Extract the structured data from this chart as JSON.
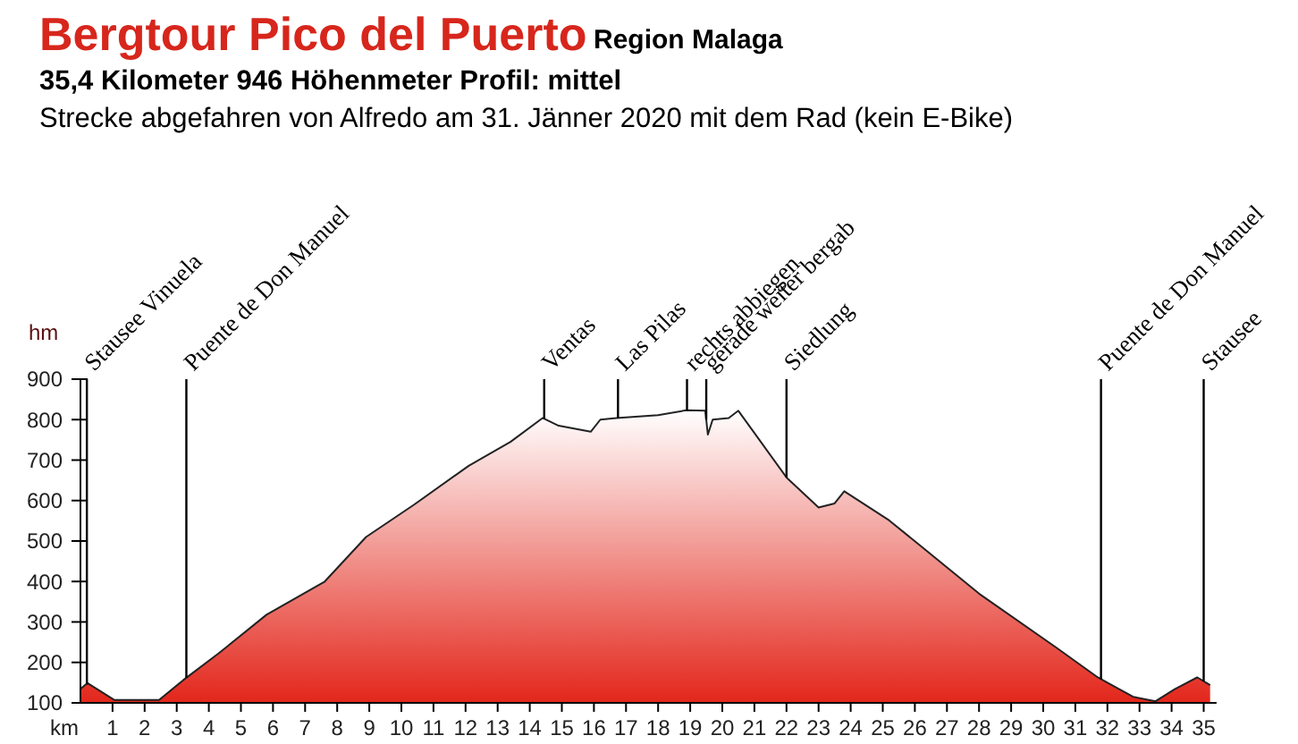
{
  "chart_data": {
    "type": "area",
    "title": "Bergtour Pico del Puerto",
    "subtitle": "35,4 Kilometer  946 Höhenmeter  Profil: mittel",
    "annotations": [
      "Region Malaga",
      "Strecke abgefahren von Alfredo am 31. Jänner 2020 mit dem Rad (kein E-Bike)"
    ],
    "xlabel": "km",
    "ylabel": "hm",
    "x": [
      0,
      0.22,
      1.06,
      2.45,
      3.2,
      4.3,
      5.8,
      7.6,
      8.9,
      10.4,
      12.1,
      13.4,
      14.4,
      14.9,
      15.9,
      16.2,
      16.7,
      18.0,
      18.87,
      19.47,
      19.55,
      19.7,
      20.2,
      20.5,
      21.2,
      22.0,
      23.0,
      23.5,
      23.8,
      25.2,
      26.3,
      28.0,
      30.4,
      31.7,
      32.8,
      33.5,
      34.1,
      34.8,
      35.2
    ],
    "series": [
      {
        "color": "#e3261b",
        "values": [
          134,
          149,
          107,
          107,
          156,
          222,
          318,
          399,
          510,
          590,
          686,
          745,
          804,
          785,
          770,
          800,
          804,
          811,
          823,
          822,
          763,
          800,
          804,
          822,
          745,
          657,
          583,
          593,
          623,
          551,
          480,
          370,
          237,
          163,
          115,
          104,
          134,
          163,
          144
        ]
      }
    ],
    "xlim": [
      0,
      35.4
    ],
    "xticks": [
      1,
      2,
      3,
      4,
      5,
      6,
      7,
      8,
      9,
      10,
      11,
      12,
      13,
      14,
      15,
      16,
      17,
      18,
      19,
      20,
      21,
      22,
      23,
      24,
      25,
      26,
      27,
      28,
      29,
      30,
      31,
      32,
      33,
      34,
      35
    ],
    "ylim": [
      100,
      900
    ],
    "yticks": [
      100,
      200,
      300,
      400,
      500,
      600,
      700,
      800,
      900
    ],
    "ref_lines": [
      {
        "axis": "x",
        "value": 0.2,
        "label": "Stausee Vinuela",
        "color": "#000000"
      },
      {
        "axis": "x",
        "value": 3.3,
        "label": "Puente de Don Manuel",
        "color": "#000000"
      },
      {
        "axis": "x",
        "value": 14.45,
        "label": "Ventas",
        "color": "#000000"
      },
      {
        "axis": "x",
        "value": 16.75,
        "label": "Las Pilas",
        "color": "#000000"
      },
      {
        "axis": "x",
        "value": 18.9,
        "label": "rechts abbiegen",
        "color": "#000000"
      },
      {
        "axis": "x",
        "value": 19.5,
        "label": "gerade weiter bergab",
        "color": "#000000"
      },
      {
        "axis": "x",
        "value": 22.0,
        "label": "Siedlung",
        "color": "#000000"
      },
      {
        "axis": "x",
        "value": 31.8,
        "label": "Puente de Don Manuel",
        "color": "#000000"
      },
      {
        "axis": "x",
        "value": 35.0,
        "label": "Stausee",
        "color": "#000000"
      }
    ],
    "grid": false
  }
}
